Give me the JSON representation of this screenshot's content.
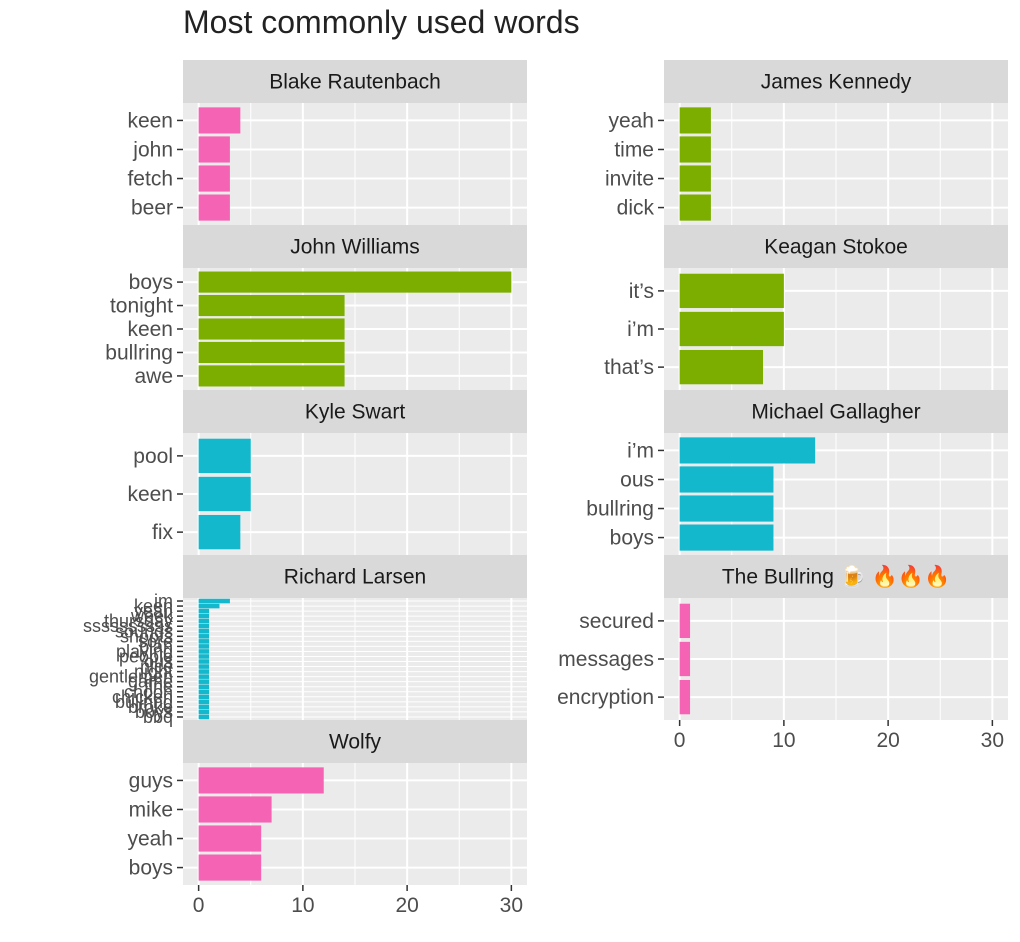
{
  "title": "Most commonly used words",
  "colors": {
    "pink": "#f564b4",
    "green": "#7cae00",
    "cyan": "#13b8cc",
    "strip": "#d9d9d9",
    "panel": "#ebebeb",
    "grid": "#ffffff",
    "text": "#4d4d4d",
    "strip_text": "#1a1a1a"
  },
  "chart_data": {
    "type": "bar",
    "orientation": "horizontal",
    "facet_layout": "wrap, 2 columns",
    "grid": true,
    "xlim": [
      -1.5,
      31.5
    ],
    "x_ticks": [
      0,
      10,
      20,
      30
    ],
    "panels": [
      {
        "name": "Blake Rautenbach",
        "color": "pink",
        "categories": [
          "keen",
          "john",
          "fetch",
          "beer"
        ],
        "values": [
          4,
          3,
          3,
          3
        ]
      },
      {
        "name": "James Kennedy",
        "color": "green",
        "categories": [
          "yeah",
          "time",
          "invite",
          "dick"
        ],
        "values": [
          3,
          3,
          3,
          3
        ]
      },
      {
        "name": "John Williams",
        "color": "green",
        "categories": [
          "boys",
          "tonight",
          "keen",
          "bullring",
          "awe"
        ],
        "values": [
          30,
          14,
          14,
          14,
          14
        ]
      },
      {
        "name": "Keagan Stokoe",
        "color": "green",
        "categories": [
          "it’s",
          "i’m",
          "that’s"
        ],
        "values": [
          10,
          10,
          8
        ]
      },
      {
        "name": "Kyle Swart",
        "color": "cyan",
        "categories": [
          "pool",
          "keen",
          "fix"
        ],
        "values": [
          5,
          5,
          4
        ]
      },
      {
        "name": "Michael Gallagher",
        "color": "cyan",
        "categories": [
          "i’m",
          "ous",
          "bullring",
          "boys"
        ],
        "values": [
          13,
          9,
          9,
          9
        ]
      },
      {
        "name": "Richard Larsen",
        "color": "cyan",
        "crowded": true,
        "categories": [
          "im",
          "keen",
          "yeah",
          "week",
          "thursday",
          "ssssssssss",
          "sounds",
          "shoots",
          "sore",
          "plan",
          "playing",
          "people",
          "ous",
          "nice",
          "night",
          "gentlemen",
          "game",
          "fine",
          "choon",
          "chicken",
          "bullring",
          "broke",
          "boys",
          "bbq"
        ],
        "values": [
          3,
          2,
          1,
          1,
          1,
          1,
          1,
          1,
          1,
          1,
          1,
          1,
          1,
          1,
          1,
          1,
          1,
          1,
          1,
          1,
          1,
          1,
          1,
          1
        ]
      },
      {
        "name": "The Bullring 🍺 🔥🔥🔥",
        "color": "pink",
        "categories": [
          "secured",
          "messages",
          "encryption"
        ],
        "values": [
          1,
          1,
          1
        ]
      },
      {
        "name": "Wolfy",
        "color": "pink",
        "categories": [
          "guys",
          "mike",
          "yeah",
          "boys"
        ],
        "values": [
          12,
          7,
          6,
          6
        ]
      }
    ]
  }
}
